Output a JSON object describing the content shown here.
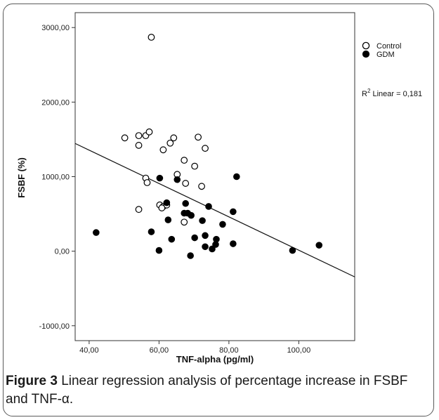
{
  "caption": {
    "label": "Figure 3",
    "text": "Linear regression analysis of percentage increase in FSBF and TNF-α."
  },
  "chart_data": {
    "type": "scatter",
    "xlabel": "TNF-alpha (pg/ml)",
    "ylabel": "FSBF (%)",
    "xlim": [
      36,
      116
    ],
    "ylim": [
      -1200,
      3200
    ],
    "x_ticks": [
      40,
      60,
      80,
      100
    ],
    "x_tick_labels": [
      "40,00",
      "60,00",
      "80,00",
      "100,00"
    ],
    "y_ticks": [
      -1000,
      0,
      1000,
      2000,
      3000
    ],
    "y_tick_labels": [
      "-1000,00",
      "0,00",
      "1000,00",
      "2000,00",
      "3000,00"
    ],
    "legend": {
      "placement": "top-right"
    },
    "annotation": {
      "prefix": "R",
      "superscript": "2",
      "suffix": " Linear = 0,181"
    },
    "grid": false,
    "fit_line": {
      "x": [
        36,
        116
      ],
      "y": [
        1445,
        -345
      ]
    },
    "series": [
      {
        "name": "Control",
        "marker": "open-circle",
        "points": [
          [
            57.8,
            2870
          ],
          [
            50.2,
            1520
          ],
          [
            54.2,
            1550
          ],
          [
            56.2,
            1550
          ],
          [
            57.2,
            1600
          ],
          [
            54.2,
            1420
          ],
          [
            61.2,
            1360
          ],
          [
            63.2,
            1450
          ],
          [
            64.2,
            1520
          ],
          [
            71.2,
            1530
          ],
          [
            73.2,
            1380
          ],
          [
            67.2,
            1220
          ],
          [
            70.2,
            1140
          ],
          [
            65.2,
            1030
          ],
          [
            56.2,
            980
          ],
          [
            56.6,
            920
          ],
          [
            67.6,
            910
          ],
          [
            72.2,
            870
          ],
          [
            60.2,
            620
          ],
          [
            61.2,
            600
          ],
          [
            62.2,
            620
          ],
          [
            60.8,
            580
          ],
          [
            54.2,
            560
          ],
          [
            67.2,
            390
          ]
        ]
      },
      {
        "name": "GDM",
        "marker": "filled-circle",
        "points": [
          [
            60.2,
            980
          ],
          [
            65.2,
            960
          ],
          [
            82.2,
            1000
          ],
          [
            62.2,
            650
          ],
          [
            67.6,
            640
          ],
          [
            74.2,
            600
          ],
          [
            67.2,
            510
          ],
          [
            68.2,
            510
          ],
          [
            69.2,
            480
          ],
          [
            81.2,
            530
          ],
          [
            78.2,
            360
          ],
          [
            62.6,
            420
          ],
          [
            72.4,
            410
          ],
          [
            57.8,
            260
          ],
          [
            42.0,
            250
          ],
          [
            63.6,
            160
          ],
          [
            70.2,
            180
          ],
          [
            73.2,
            210
          ],
          [
            76.4,
            160
          ],
          [
            76.2,
            90
          ],
          [
            81.2,
            100
          ],
          [
            73.2,
            60
          ],
          [
            75.2,
            30
          ],
          [
            60.0,
            10
          ],
          [
            98.2,
            10
          ],
          [
            105.8,
            80
          ],
          [
            69.0,
            -60
          ]
        ]
      }
    ]
  }
}
